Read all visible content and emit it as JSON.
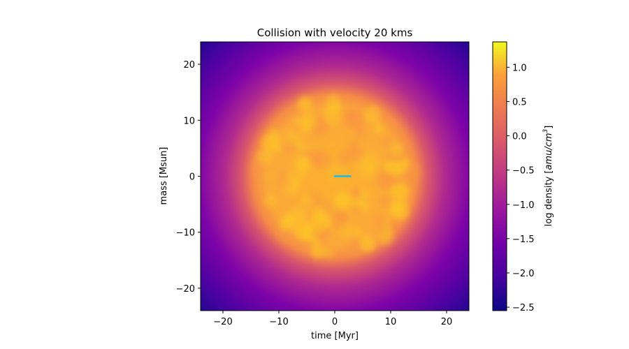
{
  "chart_data": {
    "type": "heatmap",
    "title": "Collision with velocity 20 kms",
    "xlabel": "time [Myr]",
    "ylabel": "mass [Msun]",
    "xlim": [
      -24,
      24
    ],
    "ylim": [
      -24,
      24
    ],
    "xticks": [
      -20,
      -10,
      0,
      10,
      20
    ],
    "yticks": [
      -20,
      -10,
      0,
      10,
      20
    ],
    "xtick_labels": [
      "−20",
      "−10",
      "0",
      "10",
      "20"
    ],
    "ytick_labels": [
      "−20",
      "−10",
      "0",
      "10",
      "20"
    ],
    "colormap": "plasma",
    "colorbar": {
      "label_prefix": "log density [",
      "label_unit_base": "amu/cm",
      "label_unit_exp": "3",
      "label_suffix": "]",
      "range": [
        -2.55,
        1.37
      ],
      "ticks": [
        1.0,
        0.5,
        0.0,
        -0.5,
        -1.0,
        -1.5,
        -2.0,
        -2.5
      ],
      "tick_labels": [
        "1.0",
        "0.5",
        "0.0",
        "−0.5",
        "−1.0",
        "−1.5",
        "−2.0",
        "−2.5"
      ]
    },
    "density_field": {
      "cloud_center": [
        0,
        0
      ],
      "cloud_radius": 16,
      "inner_value": 0.6,
      "edge_value": -1.3,
      "corner_value": -2.5
    },
    "overlay_segment": {
      "x": [
        0,
        2.8
      ],
      "y": [
        0,
        0
      ],
      "color": "#3fb8c6"
    },
    "grid": false
  }
}
